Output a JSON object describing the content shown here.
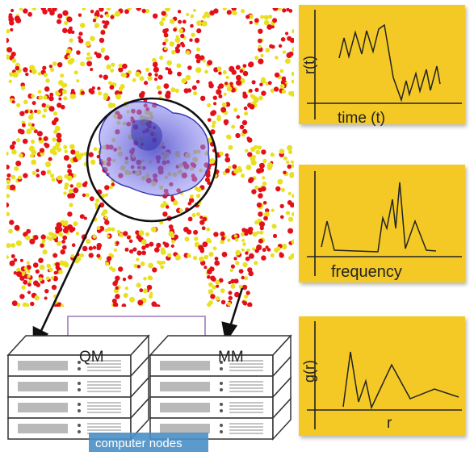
{
  "colors": {
    "framework_atom_red": "#e3101a",
    "framework_atom_yellow": "#e8e020",
    "adsorbate_blue": "#6b68e0",
    "panel_yellow": "#f4c928",
    "caption_blue": "#4a8fc5",
    "connector_purple": "#a98bc4"
  },
  "panels": [
    {
      "ylabel": "r(t)",
      "xlabel": "time (t)"
    },
    {
      "ylabel": "",
      "xlabel": "frequency"
    },
    {
      "ylabel": "g(r)",
      "xlabel": "r"
    }
  ],
  "servers": {
    "qm_label": "QM",
    "mm_label": "MM",
    "caption": "computer nodes"
  },
  "icons": [
    "zeolite-framework-image",
    "server-stack-icon",
    "arrow-icon"
  ]
}
